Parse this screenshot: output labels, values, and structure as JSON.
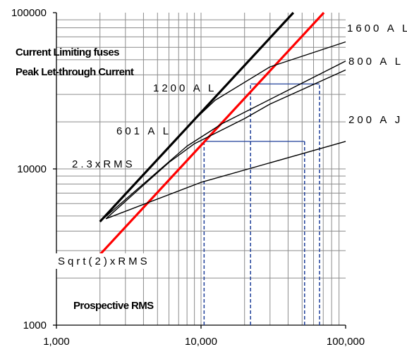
{
  "chart_data": {
    "type": "line",
    "title": "Current Limiting fuses",
    "subtitle": "Peak Let-through Current",
    "xlabel": "Prospective RMS",
    "ylabel": "",
    "xscale": "log",
    "yscale": "log",
    "xlim": [
      1000,
      100000
    ],
    "ylim": [
      1000,
      100000
    ],
    "grid": true,
    "x_tick_labels": [
      "1,000",
      "10,000",
      "100,000"
    ],
    "y_tick_labels": [
      "1000",
      "10000",
      "100000"
    ],
    "x_ticks": [
      1000,
      10000,
      100000
    ],
    "y_ticks": [
      1000,
      10000,
      100000
    ],
    "series": [
      {
        "name": "2.3xRMS",
        "label": "2.3xRMS",
        "color": "#000000",
        "style": "bold",
        "x": [
          2000,
          43500
        ],
        "y": [
          4600,
          100000
        ]
      },
      {
        "name": "Sqrt(2)xRMS",
        "label": "Sqrt(2)xRMS",
        "color": "#ff0000",
        "style": "bold",
        "x": [
          2000,
          70700
        ],
        "y": [
          2830,
          100000
        ]
      },
      {
        "name": "1200 A L",
        "label": "1200 A L",
        "color": "#000000",
        "style": "thin",
        "x": [
          2000,
          8700,
          12500,
          30000,
          100000
        ],
        "y": [
          4600,
          20000,
          27500,
          45000,
          65000
        ]
      },
      {
        "name": "601 A L",
        "label": "601 A L",
        "color": "#000000",
        "style": "thin",
        "x": [
          2000,
          8000,
          14000,
          100000
        ],
        "y": [
          4600,
          14000,
          19500,
          49000
        ]
      },
      {
        "name": "800 A L",
        "label": "800 A L",
        "color": "#000000",
        "style": "thin",
        "x": [
          2200,
          6000,
          9000,
          20000,
          30000,
          100000
        ],
        "y": [
          4800,
          11000,
          14500,
          21000,
          26000,
          43000
        ]
      },
      {
        "name": "200 A J",
        "label": "200 A J",
        "color": "#000000",
        "style": "thin",
        "x": [
          2200,
          10000,
          100000
        ],
        "y": [
          4800,
          8200,
          15000
        ]
      }
    ],
    "reference_lines": {
      "color": "#1f3f99",
      "horizontal": [
        {
          "y": 15000,
          "x_from": 10500,
          "x_to": 52000
        },
        {
          "y": 35000,
          "x_from": 22000,
          "x_to": 66000
        }
      ],
      "vertical": [
        {
          "x": 10500,
          "y_from": 1000,
          "y_to": 15000
        },
        {
          "x": 52000,
          "y_from": 1000,
          "y_to": 15000
        },
        {
          "x": 22000,
          "y_from": 1000,
          "y_to": 35000
        },
        {
          "x": 66000,
          "y_from": 1000,
          "y_to": 35000
        }
      ]
    }
  }
}
